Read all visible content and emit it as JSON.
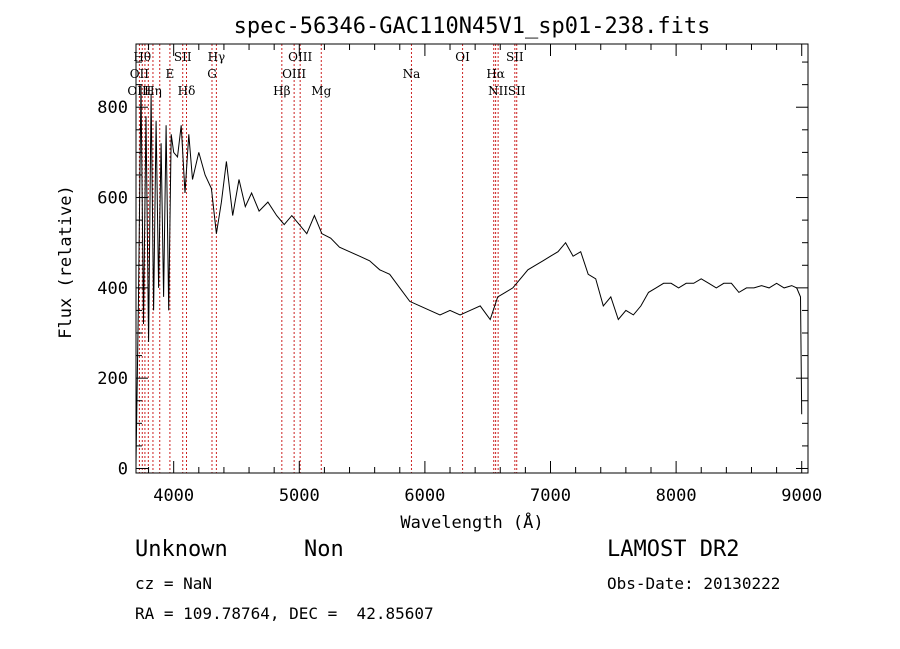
{
  "chart_data": {
    "type": "line",
    "title": "spec-56346-GAC110N45V1_sp01-238.fits",
    "xlabel": "Wavelength (Å)",
    "ylabel": "Flux (relative)",
    "xlim": [
      3700,
      9050
    ],
    "ylim": [
      -10,
      940
    ],
    "x_ticks": [
      4000,
      5000,
      6000,
      7000,
      8000,
      9000
    ],
    "y_ticks": [
      0,
      200,
      400,
      600,
      800
    ],
    "grid": false,
    "series": [
      {
        "color": "#000000",
        "x": [
          3700,
          3720,
          3740,
          3760,
          3780,
          3800,
          3820,
          3840,
          3860,
          3880,
          3900,
          3920,
          3940,
          3960,
          3980,
          4000,
          4030,
          4060,
          4090,
          4120,
          4150,
          4200,
          4250,
          4300,
          4340,
          4380,
          4420,
          4470,
          4520,
          4570,
          4620,
          4680,
          4750,
          4820,
          4880,
          4940,
          5000,
          5060,
          5120,
          5180,
          5250,
          5320,
          5400,
          5480,
          5560,
          5640,
          5720,
          5800,
          5880,
          5960,
          6040,
          6120,
          6200,
          6280,
          6360,
          6440,
          6520,
          6580,
          6640,
          6700,
          6760,
          6820,
          6880,
          6940,
          7000,
          7060,
          7120,
          7180,
          7240,
          7300,
          7360,
          7420,
          7480,
          7540,
          7600,
          7660,
          7720,
          7780,
          7840,
          7900,
          7960,
          8020,
          8080,
          8140,
          8200,
          8260,
          8320,
          8380,
          8440,
          8500,
          8560,
          8620,
          8680,
          8740,
          8800,
          8860,
          8920,
          8960,
          8990,
          9000
        ],
        "y": [
          10,
          380,
          850,
          320,
          780,
          280,
          830,
          350,
          770,
          400,
          720,
          380,
          760,
          350,
          740,
          700,
          690,
          760,
          610,
          740,
          640,
          700,
          650,
          620,
          520,
          590,
          680,
          560,
          640,
          580,
          610,
          570,
          590,
          560,
          540,
          560,
          540,
          520,
          560,
          520,
          510,
          490,
          480,
          470,
          460,
          440,
          430,
          400,
          370,
          360,
          350,
          340,
          350,
          340,
          350,
          360,
          330,
          380,
          390,
          400,
          420,
          440,
          450,
          460,
          470,
          480,
          500,
          470,
          480,
          430,
          420,
          360,
          380,
          330,
          350,
          340,
          360,
          390,
          400,
          410,
          410,
          400,
          410,
          410,
          420,
          410,
          400,
          410,
          410,
          390,
          400,
          400,
          405,
          400,
          410,
          400,
          405,
          400,
          380,
          120
        ]
      }
    ],
    "annotations": [
      {
        "label": "OII",
        "wavelength": 3727,
        "row": 2
      },
      {
        "label": "OIII",
        "wavelength": 3727,
        "row": 3
      },
      {
        "label": "Hθ",
        "wavelength": 3750,
        "row": 1
      },
      {
        "label": "Hη",
        "wavelength": 3835,
        "row": 3
      },
      {
        "label": "SII",
        "wavelength": 4072,
        "row": 1
      },
      {
        "label": "E",
        "wavelength": 3970,
        "row": 2
      },
      {
        "label": "Hδ",
        "wavelength": 4102,
        "row": 3
      },
      {
        "label": "Hγ",
        "wavelength": 4340,
        "row": 1
      },
      {
        "label": "G",
        "wavelength": 4305,
        "row": 2
      },
      {
        "label": "Hβ",
        "wavelength": 4861,
        "row": 3
      },
      {
        "label": "OIII",
        "wavelength": 5007,
        "row": 1
      },
      {
        "label": "OIII",
        "wavelength": 4959,
        "row": 2
      },
      {
        "label": "Mg",
        "wavelength": 5175,
        "row": 3
      },
      {
        "label": "Na",
        "wavelength": 5893,
        "row": 2
      },
      {
        "label": "OI",
        "wavelength": 6300,
        "row": 1
      },
      {
        "label": "Hα",
        "wavelength": 6563,
        "row": 2
      },
      {
        "label": "NII",
        "wavelength": 6583,
        "row": 3
      },
      {
        "label": "SII",
        "wavelength": 6716,
        "row": 1
      },
      {
        "label": "SII",
        "wavelength": 6731,
        "row": 3
      }
    ],
    "marker_lines": [
      3727,
      3750,
      3771,
      3798,
      3835,
      3889,
      3970,
      4072,
      4102,
      4305,
      4340,
      4861,
      4959,
      5007,
      5175,
      5893,
      6300,
      6548,
      6563,
      6583,
      6716,
      6731
    ],
    "marker_color": "#cc2222"
  },
  "info": {
    "class_label": "Unknown",
    "subclass_label": "Non",
    "cz_text": "cz = NaN",
    "coords_text": "RA = 109.78764, DEC =  42.85607",
    "survey": "LAMOST DR2",
    "obs_date": "Obs-Date: 20130222"
  }
}
